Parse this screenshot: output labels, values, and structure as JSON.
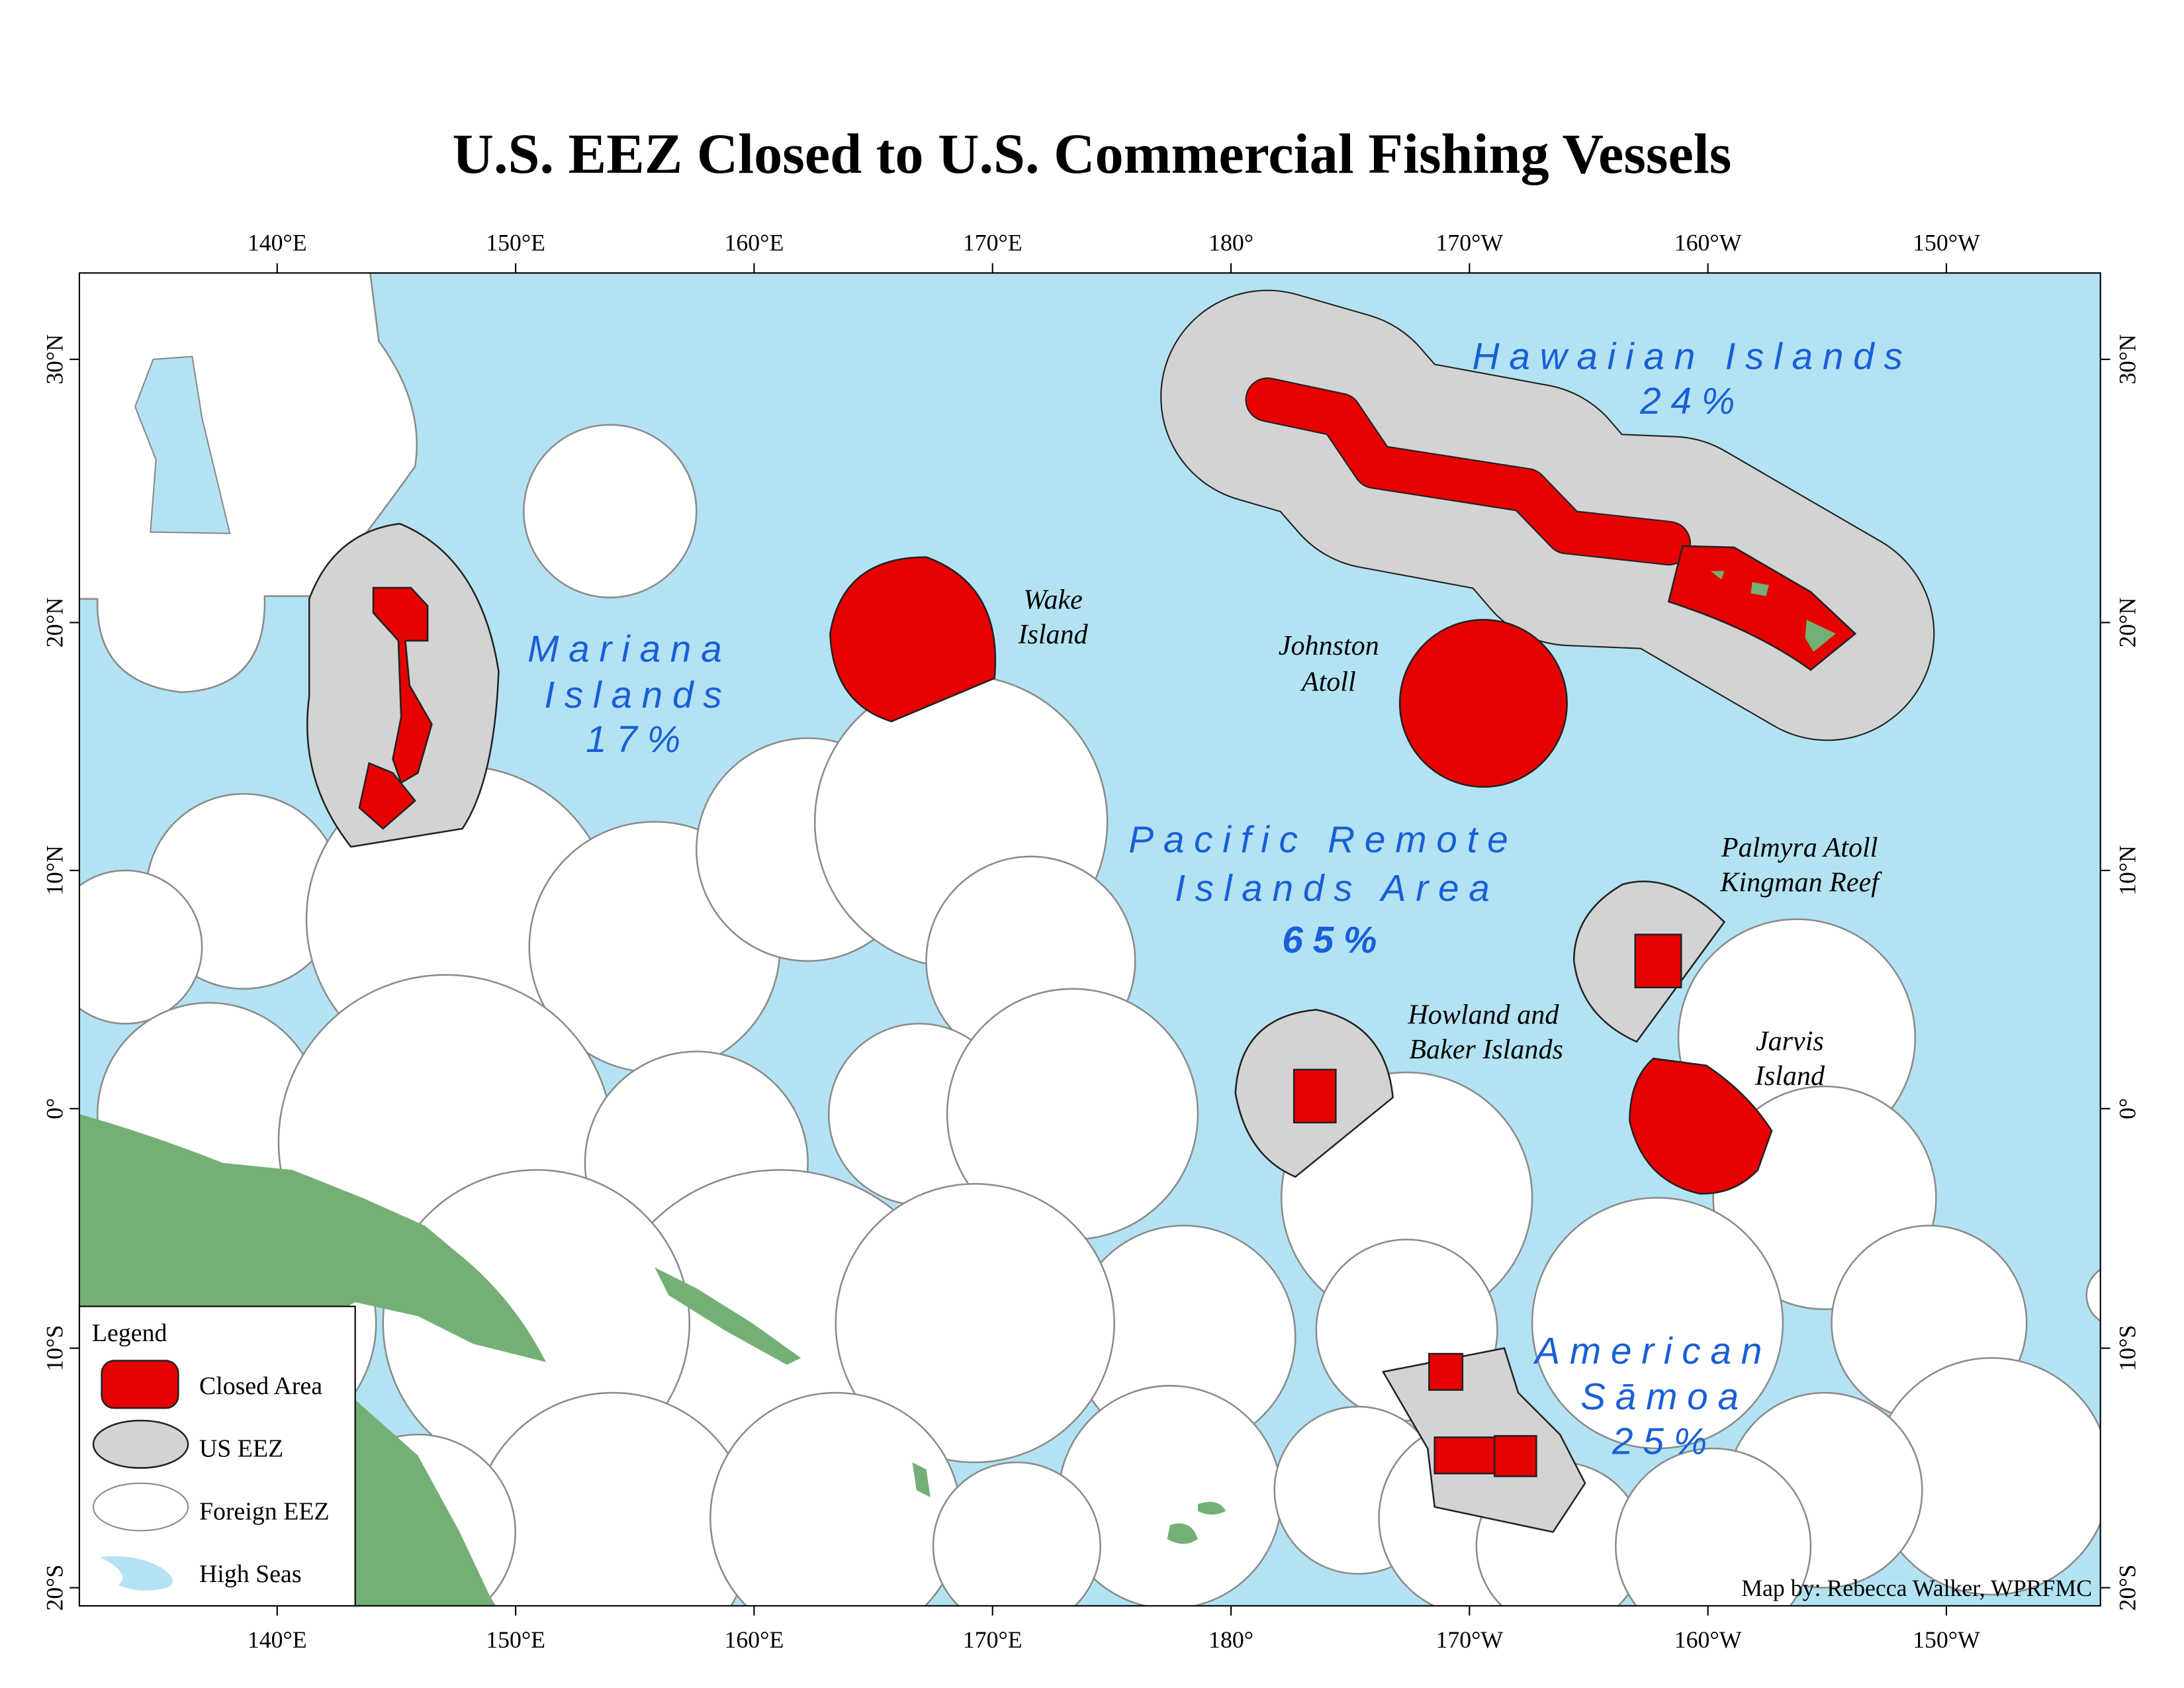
{
  "title": "U.S. EEZ Closed to U.S. Commercial Fishing Vessels",
  "axes": {
    "longitude_labels": [
      "140°E",
      "150°E",
      "160°E",
      "170°E",
      "180°",
      "170°W",
      "160°W",
      "150°W"
    ],
    "latitude_labels": [
      "30°N",
      "20°N",
      "10°N",
      "0°",
      "10°S",
      "20°S"
    ]
  },
  "regions": [
    {
      "lines": [
        "Mariana",
        "Islands"
      ],
      "share": "17%"
    },
    {
      "lines": [
        "Hawaiian Islands"
      ],
      "share": "24%"
    },
    {
      "lines": [
        "Pacific Remote",
        "Islands Area"
      ],
      "share": "65%"
    },
    {
      "lines": [
        "American",
        "Sāmoa"
      ],
      "share": "25%"
    }
  ],
  "places": [
    {
      "lines": [
        "Wake",
        "Island"
      ]
    },
    {
      "lines": [
        "Johnston",
        "Atoll"
      ]
    },
    {
      "lines": [
        "Palmyra Atoll",
        "Kingman Reef"
      ]
    },
    {
      "lines": [
        "Howland and",
        "Baker Islands"
      ]
    },
    {
      "lines": [
        "Jarvis",
        "Island"
      ]
    }
  ],
  "legend": {
    "title": "Legend",
    "items": [
      "Closed Area",
      "US EEZ",
      "Foreign EEZ",
      "High Seas"
    ]
  },
  "credit": "Map by: Rebecca Walker, WPRFMC"
}
